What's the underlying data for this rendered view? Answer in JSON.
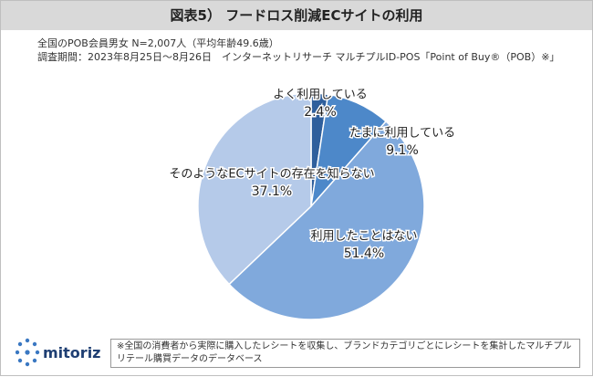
{
  "chart_data": {
    "type": "pie",
    "title": "図表5） フードロス削減ECサイトの利用",
    "notes": [
      "全国のPOB会員男女 N=2,007人（平均年齢49.6歳）",
      "調査期間：2023年8月25日～8月26日　インターネットリサーチ マルチプルID-POS「Point of Buy®（POB）※」"
    ],
    "categories": [
      "よく利用している",
      "たまに利用している",
      "利用したことはない",
      "そのようなECサイトの存在を知らない"
    ],
    "values": [
      2.4,
      9.1,
      51.4,
      37.1
    ],
    "value_labels": [
      "2.4%",
      "9.1%",
      "51.4%",
      "37.1%"
    ],
    "colors": [
      "#2f5f9c",
      "#4d88c9",
      "#80a9dc",
      "#b5cae9"
    ],
    "footnote": "※全国の消費者から実際に購入したレシートを収集し、ブランドカテゴリごとにレシートを集計したマルチプルリテール購買データのデータベース",
    "logo": "mitoriz"
  }
}
